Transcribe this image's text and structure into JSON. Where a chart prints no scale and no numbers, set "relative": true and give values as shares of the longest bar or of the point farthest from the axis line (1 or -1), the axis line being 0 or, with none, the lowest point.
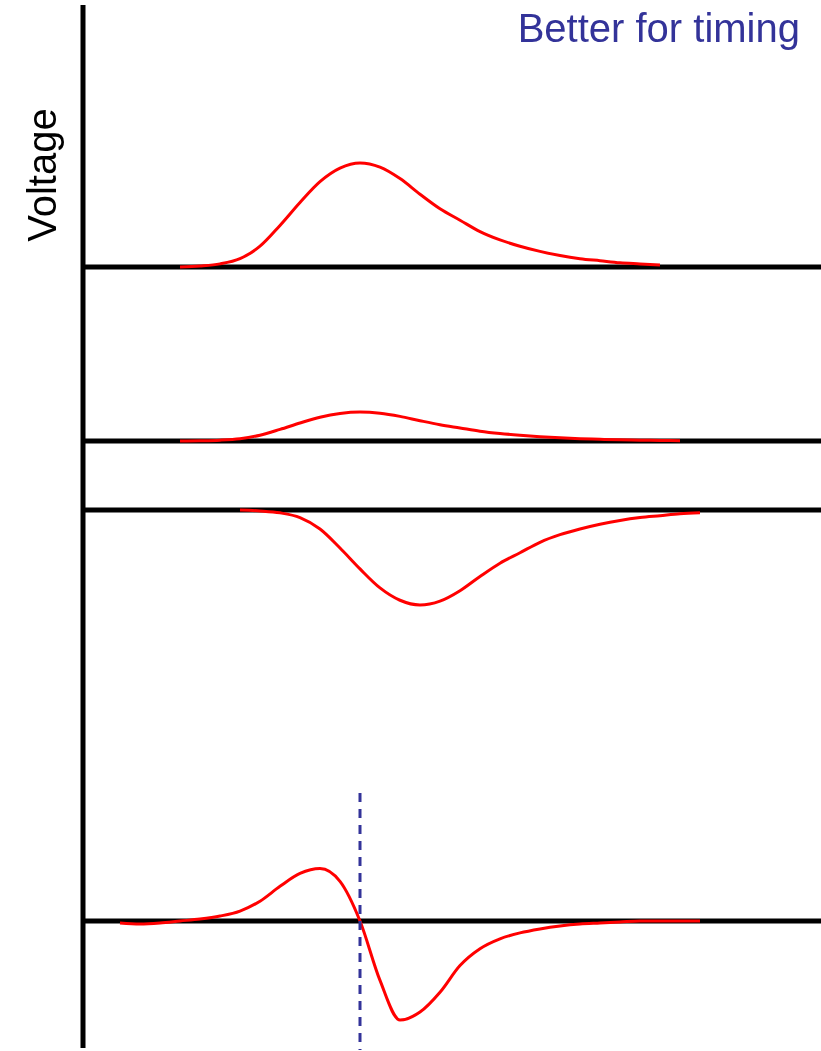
{
  "chart_data": [
    {
      "type": "line",
      "relative": true,
      "title": "Better for timing",
      "ylabel": "Voltage",
      "categories": [
        null,
        null,
        null,
        null,
        null,
        null,
        null,
        null,
        null,
        null,
        null,
        null,
        null,
        null,
        null,
        null,
        null,
        null,
        null,
        null,
        null,
        null,
        null,
        null,
        null,
        null,
        null,
        null,
        null,
        null,
        null,
        null,
        null,
        null,
        null,
        null,
        null
      ],
      "series": [
        {
          "color": "#ff0000",
          "values": [
            null,
            null,
            null,
            null,
            null,
            0,
            0.01,
            0.03,
            0.08,
            0.2,
            0.4,
            0.62,
            0.82,
            0.95,
            1,
            0.96,
            0.85,
            0.7,
            0.56,
            0.45,
            0.34,
            0.26,
            0.2,
            0.15,
            0.11,
            0.08,
            0.06,
            0.04,
            0.03,
            0.02,
            null,
            null,
            null,
            null,
            null,
            null,
            null
          ]
        }
      ]
    },
    {
      "type": "line",
      "relative": true,
      "categories": [
        null,
        null,
        null,
        null,
        null,
        null,
        null,
        null,
        null,
        null,
        null,
        null,
        null,
        null,
        null,
        null,
        null,
        null,
        null,
        null,
        null,
        null,
        null,
        null,
        null,
        null,
        null,
        null,
        null,
        null,
        null,
        null,
        null,
        null,
        null,
        null,
        null
      ],
      "series": [
        {
          "color": "#ff0000",
          "values": [
            null,
            null,
            null,
            null,
            null,
            0,
            0.01,
            0.03,
            0.08,
            0.2,
            0.4,
            0.62,
            0.82,
            0.95,
            1,
            0.96,
            0.85,
            0.7,
            0.56,
            0.45,
            0.34,
            0.26,
            0.2,
            0.15,
            0.11,
            0.08,
            0.06,
            0.04,
            0.03,
            0.02,
            0.01,
            null,
            null,
            null,
            null,
            null,
            null
          ]
        }
      ]
    },
    {
      "type": "line",
      "relative": true,
      "categories": [
        null,
        null,
        null,
        null,
        null,
        null,
        null,
        null,
        null,
        null,
        null,
        null,
        null,
        null,
        null,
        null,
        null,
        null,
        null,
        null,
        null,
        null,
        null,
        null,
        null,
        null,
        null,
        null,
        null,
        null,
        null,
        null,
        null,
        null,
        null,
        null,
        null
      ],
      "series": [
        {
          "color": "#ff0000",
          "values": [
            null,
            null,
            null,
            null,
            null,
            null,
            null,
            null,
            0,
            -0.01,
            -0.03,
            -0.08,
            -0.2,
            -0.4,
            -0.62,
            -0.82,
            -0.95,
            -1,
            -0.96,
            -0.85,
            -0.7,
            -0.56,
            -0.45,
            -0.34,
            -0.26,
            -0.2,
            -0.15,
            -0.11,
            -0.08,
            -0.06,
            -0.04,
            -0.03,
            null,
            null,
            null,
            null,
            null
          ]
        }
      ]
    },
    {
      "type": "line",
      "relative": true,
      "categories": [
        null,
        null,
        null,
        null,
        null,
        null,
        null,
        null,
        null,
        null,
        null,
        null,
        null,
        null,
        null,
        null,
        null,
        null,
        null,
        null,
        null,
        null,
        null,
        null,
        null,
        null,
        null,
        null,
        null,
        null,
        null,
        null,
        null,
        null,
        null,
        null,
        null
      ],
      "series": [
        {
          "color": "#ff0000",
          "values": [
            null,
            null,
            -0.02,
            -0.03,
            -0.02,
            0,
            0.02,
            0.05,
            0.1,
            0.2,
            0.35,
            0.48,
            0.53,
            0.4,
            0,
            -0.6,
            -1,
            -0.92,
            -0.72,
            -0.45,
            -0.28,
            -0.18,
            -0.12,
            -0.08,
            -0.05,
            -0.03,
            -0.02,
            -0.01,
            0,
            0,
            0,
            0,
            null,
            null,
            null,
            null,
            null
          ]
        }
      ]
    }
  ]
}
